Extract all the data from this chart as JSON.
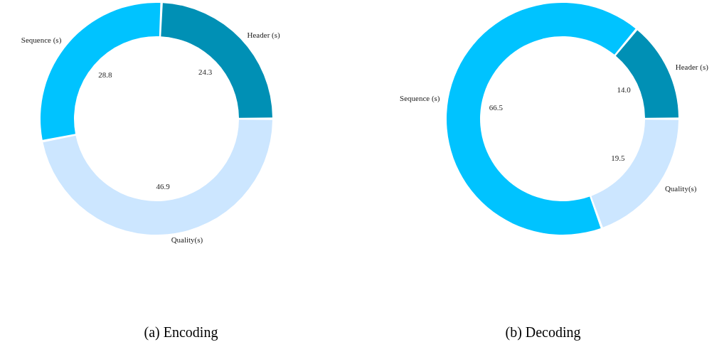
{
  "chart_data": [
    {
      "type": "donut",
      "title": "(a) Encoding",
      "categories": [
        "Header (s)",
        "Sequence (s)",
        "Quality(s)"
      ],
      "values": [
        24.3,
        28.8,
        46.9
      ],
      "value_labels": [
        "24.3",
        "28.8",
        "46.9"
      ],
      "colors": [
        "#0090b5",
        "#00c3ff",
        "#cce6ff"
      ]
    },
    {
      "type": "donut",
      "title": "(b) Decoding",
      "categories": [
        "Header (s)",
        "Sequence (s)",
        "Quality(s)"
      ],
      "values": [
        14.0,
        66.5,
        19.5
      ],
      "value_labels": [
        "14.0",
        "66.5",
        "19.5"
      ],
      "colors": [
        "#0090b5",
        "#00c3ff",
        "#cce6ff"
      ]
    }
  ]
}
